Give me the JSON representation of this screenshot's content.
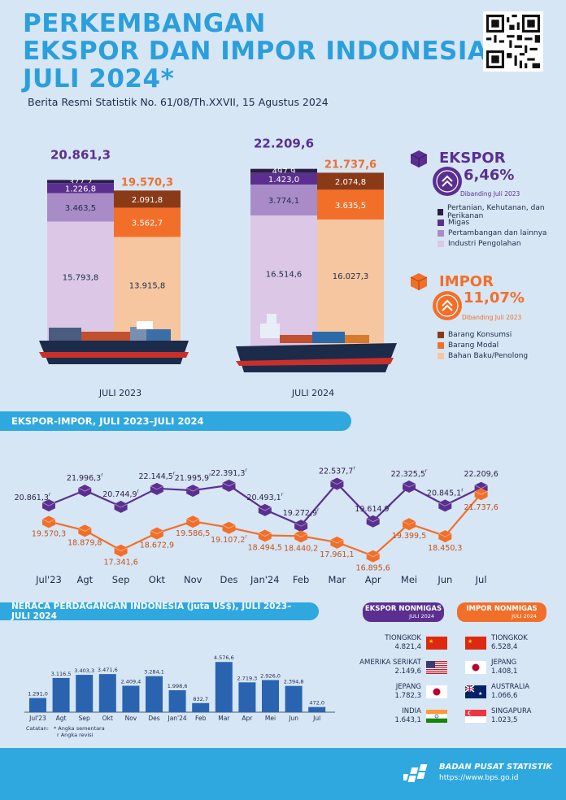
{
  "header": {
    "title_lines": [
      "PERKEMBANGAN",
      "EKSPOR DAN IMPOR INDONESIA",
      "JULI 2024*"
    ],
    "subtitle": "Berita Resmi Statistik No. 61/08/Th.XXVII, 15 Agustus 2024"
  },
  "stacks": {
    "ekspor_2023": {
      "total": "20.861,3",
      "values": [
        377.2,
        1226.8,
        3463.5,
        15793.8
      ],
      "labels": [
        "377,2",
        "1.226,8",
        "3.463,5",
        "15.793,8"
      ]
    },
    "impor_2023": {
      "total": "19.570,3",
      "values": [
        2091.8,
        3562.7,
        13915.8
      ],
      "labels": [
        "2.091,8",
        "3.562,7",
        "13.915,8"
      ]
    },
    "ekspor_2024": {
      "total": "22.209,6",
      "values": [
        497.9,
        1423.0,
        3774.1,
        16514.6
      ],
      "labels": [
        "497,9",
        "1.423,0",
        "3.774,1",
        "16.514,6"
      ]
    },
    "impor_2024": {
      "total": "21.737,6",
      "values": [
        2074.8,
        3635.5,
        16027.3
      ],
      "labels": [
        "2.074,8",
        "3.635,5",
        "16.027,3"
      ]
    },
    "year_labels": [
      "JULI 2023",
      "JULI 2024"
    ]
  },
  "ekspor_panel": {
    "title": "EKSPOR",
    "pct": "6,46%",
    "compare": "Dibanding Juli 2023",
    "legend": [
      "Pertanian, Kehutanan, dan Perikanan",
      "Migas",
      "Pertambangan dan lainnya",
      "Industri Pengolahan"
    ],
    "colors": [
      "#2b1e45",
      "#5b2f8f",
      "#a98cc7",
      "#dcc8e6"
    ]
  },
  "impor_panel": {
    "title": "IMPOR",
    "pct": "11,07%",
    "compare": "Dibanding Juli 2023",
    "legend": [
      "Barang Konsumsi",
      "Barang Modal",
      "Bahan Baku/Penolong"
    ],
    "colors": [
      "#8a3a17",
      "#f26f2a",
      "#f5c6a0"
    ]
  },
  "line_section": {
    "title": "EKSPOR-IMPOR, JULI 2023–JULI 2024"
  },
  "bar_section": {
    "title": "NERACA PERDAGANGAN INDONESIA (juta US$), JULI 2023–JULI 2024"
  },
  "notes": {
    "label": "Catatan:",
    "n1": "* Angka sementara",
    "n2": "r Angka revisi"
  },
  "chart_data": [
    {
      "type": "line",
      "categories": [
        "Jul'23",
        "Agt",
        "Sep",
        "Okt",
        "Nov",
        "Des",
        "Jan'24",
        "Feb",
        "Mar",
        "Apr",
        "Mei",
        "Jun",
        "Jul"
      ],
      "series": [
        {
          "name": "Ekspor",
          "values": [
            20861.3,
            21996.3,
            20744.9,
            22144.5,
            21995.9,
            22391.3,
            20493.1,
            19272.9,
            22537.7,
            19614.9,
            22325.5,
            20845.1,
            22209.6
          ],
          "labels": [
            "20.861,3",
            "21.996,3",
            "20.744,9",
            "22.144,5",
            "21.995,9",
            "22.391,3",
            "20.493,1",
            "19.272,9",
            "22.537,7",
            "19.614,9",
            "22.325,5",
            "20.845,1",
            "22.209,6"
          ],
          "revised": [
            true,
            true,
            true,
            true,
            true,
            true,
            true,
            true,
            true,
            true,
            true,
            true,
            false
          ]
        },
        {
          "name": "Impor",
          "values": [
            19570.3,
            18879.8,
            17341.6,
            18672.9,
            19586.5,
            19107.2,
            18494.5,
            18440.2,
            17961.1,
            16895.6,
            19399.5,
            18450.3,
            21737.6
          ],
          "labels": [
            "19.570,3",
            "18.879,8",
            "17.341,6",
            "18.672,9",
            "19.586,5",
            "19.107,2",
            "18.494,5",
            "18.440,2",
            "17.961,1",
            "16.895,6",
            "19.399,5",
            "18.450,3",
            "21.737,6"
          ],
          "revised": [
            false,
            false,
            false,
            false,
            false,
            true,
            false,
            false,
            false,
            false,
            false,
            false,
            false
          ]
        }
      ],
      "colors": {
        "ekspor": "#5b2f8f",
        "impor": "#f26f2a"
      }
    },
    {
      "type": "bar",
      "categories": [
        "Jul'23",
        "Agt",
        "Sep",
        "Okt",
        "Nov",
        "Des",
        "Jan'24",
        "Feb",
        "Mar",
        "Apr",
        "Mei",
        "Jun",
        "Jul"
      ],
      "values": [
        1291.0,
        3116.5,
        3403.3,
        3471.6,
        2409.4,
        3284.1,
        1998.6,
        832.7,
        4576.6,
        2719.3,
        2926.0,
        2394.8,
        472.0
      ],
      "labels": [
        "1.291,0",
        "3.116,5",
        "3.403,3",
        "3.471,6",
        "2.409,4",
        "3.284,1",
        "1.998,6",
        "832,7",
        "4.576,6",
        "2.719,3",
        "2.926,0",
        "2.394,8",
        "472,0"
      ],
      "revised": [
        false,
        false,
        false,
        false,
        false,
        false,
        false,
        false,
        false,
        false,
        false,
        false,
        false
      ],
      "color": "#2a64b0"
    }
  ],
  "partners": {
    "ekspor": {
      "title": "EKSPOR NONMIGAS",
      "sub": "JULI 2024",
      "items": [
        {
          "name": "TIONGKOK",
          "value": "4.821,4",
          "flag": "cn"
        },
        {
          "name": "AMERIKA SERIKAT",
          "value": "2.149,6",
          "flag": "us"
        },
        {
          "name": "JEPANG",
          "value": "1.782,3",
          "flag": "jp"
        },
        {
          "name": "INDIA",
          "value": "1.643,1",
          "flag": "in"
        }
      ]
    },
    "impor": {
      "title": "IMPOR NONMIGAS",
      "sub": "JULI 2024",
      "items": [
        {
          "name": "TIONGKOK",
          "value": "6.528,4",
          "flag": "cn"
        },
        {
          "name": "JEPANG",
          "value": "1.408,1",
          "flag": "jp"
        },
        {
          "name": "AUSTRALIA",
          "value": "1.066,6",
          "flag": "au"
        },
        {
          "name": "SINGAPURA",
          "value": "1.023,5",
          "flag": "sg"
        }
      ]
    }
  },
  "footer": {
    "org": "BADAN PUSAT STATISTIK",
    "url": "https://www.bps.go.id"
  }
}
